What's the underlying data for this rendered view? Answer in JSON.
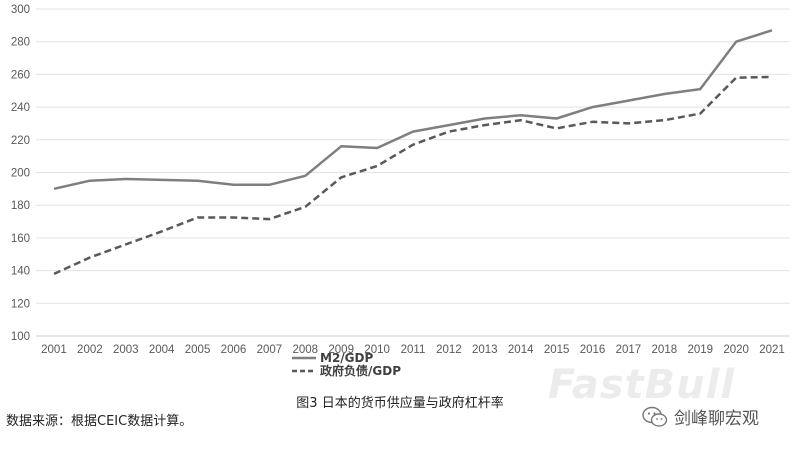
{
  "chart_data": {
    "type": "line",
    "title": "",
    "xlabel": "",
    "ylabel": "",
    "categories": [
      "2001",
      "2002",
      "2003",
      "2004",
      "2005",
      "2006",
      "2007",
      "2008",
      "2009",
      "2010",
      "2011",
      "2012",
      "2013",
      "2014",
      "2015",
      "2016",
      "2017",
      "2018",
      "2019",
      "2020",
      "2021"
    ],
    "ylim": [
      100,
      300
    ],
    "yticks": [
      100,
      120,
      140,
      160,
      180,
      200,
      220,
      240,
      260,
      280,
      300
    ],
    "grid": true,
    "legend_position": "bottom",
    "series": [
      {
        "name": "M2/GDP",
        "style": "solid",
        "color": "#7f7f7f",
        "values": [
          190,
          195,
          196,
          195.5,
          195,
          192.5,
          192.5,
          198,
          216,
          215,
          225,
          229,
          233,
          235,
          233,
          240,
          244,
          248,
          251,
          280,
          287
        ]
      },
      {
        "name": "政府负债/GDP",
        "style": "dashed",
        "color": "#595959",
        "values": [
          138,
          148,
          156,
          164,
          172.5,
          172.5,
          171.5,
          179,
          197,
          204,
          217,
          225,
          229,
          232,
          227,
          231,
          230,
          232,
          236,
          258,
          258.5
        ]
      }
    ]
  },
  "caption": "图3 日本的货币供应量与政府杠杆率",
  "source": "数据来源：根据CEIC数据计算。",
  "watermark": "FastBull",
  "wechat_account": "剑峰聊宏观",
  "icons": {
    "wechat": "wechat-icon"
  }
}
